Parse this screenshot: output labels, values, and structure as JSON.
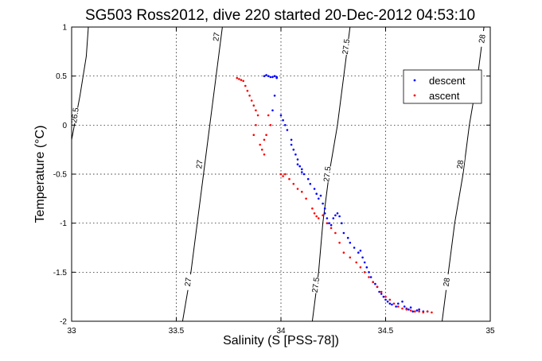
{
  "chart_data": {
    "type": "scatter",
    "title": "SG503 Ross2012, dive 220 started 20-Dec-2012 04:53:10",
    "xlabel": "Salinity (S [PSS-78])",
    "ylabel": "Temperature (°C)",
    "xlim": [
      33,
      35
    ],
    "ylim": [
      -2,
      1
    ],
    "grid": true,
    "legend_position": "top-right",
    "x_ticks": [
      "33",
      "33.5",
      "34",
      "34.5",
      "35"
    ],
    "y_ticks": [
      "1",
      "0.5",
      "0",
      "-0.5",
      "-1",
      "-1.5",
      "-2"
    ],
    "colors": {
      "descent": "#0000ff",
      "ascent": "#ff0000"
    },
    "contours": [
      {
        "label": "26.5",
        "points": [
          [
            33.0,
            -0.15
          ],
          [
            33.04,
            0.3
          ],
          [
            33.07,
            0.7
          ],
          [
            33.08,
            1.0
          ]
        ],
        "labels_at": [
          [
            33.015,
            0.1
          ]
        ]
      },
      {
        "label": "27",
        "points": [
          [
            33.53,
            -2.0
          ],
          [
            33.57,
            -1.5
          ],
          [
            33.6,
            -1.0
          ],
          [
            33.63,
            -0.5
          ],
          [
            33.66,
            0.0
          ],
          [
            33.69,
            0.5
          ],
          [
            33.72,
            1.0
          ]
        ],
        "labels_at": [
          [
            33.555,
            -1.6
          ],
          [
            33.61,
            -0.4
          ],
          [
            33.69,
            0.9
          ]
        ]
      },
      {
        "label": "27.5",
        "points": [
          [
            34.15,
            -2.0
          ],
          [
            34.18,
            -1.5
          ],
          [
            34.2,
            -1.0
          ],
          [
            34.23,
            -0.5
          ],
          [
            34.27,
            0.0
          ],
          [
            34.3,
            0.5
          ],
          [
            34.33,
            1.0
          ]
        ],
        "labels_at": [
          [
            34.165,
            -1.63
          ],
          [
            34.22,
            -0.5
          ],
          [
            34.31,
            0.8
          ]
        ]
      },
      {
        "label": "28",
        "points": [
          [
            34.77,
            -2.0
          ],
          [
            34.8,
            -1.5
          ],
          [
            34.83,
            -1.0
          ],
          [
            34.87,
            -0.5
          ],
          [
            34.9,
            0.0
          ],
          [
            34.94,
            0.5
          ],
          [
            34.97,
            1.0
          ]
        ],
        "labels_at": [
          [
            34.79,
            -1.6
          ],
          [
            34.855,
            -0.4
          ],
          [
            34.96,
            0.88
          ]
        ]
      }
    ],
    "series": [
      {
        "name": "descent",
        "x": [
          33.92,
          33.93,
          33.94,
          33.95,
          33.96,
          33.97,
          33.98,
          33.98,
          33.97,
          33.96,
          34.0,
          34.01,
          34.02,
          34.03,
          34.05,
          34.05,
          34.06,
          34.07,
          34.08,
          34.08,
          34.09,
          34.1,
          34.1,
          34.11,
          34.13,
          34.14,
          34.16,
          34.17,
          34.18,
          34.19,
          34.2,
          34.21,
          34.21,
          34.22,
          34.23,
          34.24,
          34.25,
          34.26,
          34.27,
          34.28,
          34.29,
          34.3,
          34.32,
          34.33,
          34.35,
          34.37,
          34.38,
          34.39,
          34.4,
          34.41,
          34.42,
          34.43,
          34.44,
          34.45,
          34.46,
          34.47,
          34.48,
          34.49,
          34.5,
          34.51,
          34.52,
          34.53,
          34.55,
          34.56,
          34.58,
          34.59,
          34.6,
          34.61,
          34.62,
          34.63,
          34.65,
          34.66,
          34.68,
          34.7
        ],
        "y": [
          0.5,
          0.51,
          0.5,
          0.49,
          0.49,
          0.5,
          0.49,
          0.48,
          0.3,
          0.15,
          0.1,
          0.05,
          0.0,
          -0.05,
          -0.15,
          -0.2,
          -0.25,
          -0.3,
          -0.35,
          -0.4,
          -0.42,
          -0.45,
          -0.48,
          -0.5,
          -0.55,
          -0.6,
          -0.65,
          -0.7,
          -0.75,
          -0.72,
          -0.8,
          -0.85,
          -0.9,
          -0.95,
          -1.0,
          -1.02,
          -0.95,
          -0.92,
          -0.9,
          -0.93,
          -1.0,
          -1.1,
          -1.15,
          -1.2,
          -1.25,
          -1.3,
          -1.28,
          -1.35,
          -1.4,
          -1.45,
          -1.5,
          -1.55,
          -1.6,
          -1.62,
          -1.65,
          -1.7,
          -1.72,
          -1.75,
          -1.78,
          -1.8,
          -1.82,
          -1.83,
          -1.85,
          -1.82,
          -1.8,
          -1.85,
          -1.87,
          -1.88,
          -1.86,
          -1.9,
          -1.89,
          -1.88,
          -1.9,
          -1.9
        ]
      },
      {
        "name": "ascent",
        "x": [
          33.79,
          33.8,
          33.81,
          33.82,
          33.83,
          33.84,
          33.85,
          33.86,
          33.87,
          33.88,
          33.89,
          33.88,
          33.87,
          33.9,
          33.91,
          33.92,
          33.92,
          33.93,
          33.94,
          33.95,
          34.0,
          34.01,
          34.02,
          34.04,
          34.06,
          34.08,
          34.1,
          34.12,
          34.15,
          34.16,
          34.17,
          34.18,
          34.2,
          34.22,
          34.24,
          34.26,
          34.28,
          34.3,
          34.33,
          34.36,
          34.38,
          34.4,
          34.42,
          34.44,
          34.46,
          34.48,
          34.5,
          34.52,
          34.54,
          34.56,
          34.58,
          34.6,
          34.62,
          34.64,
          34.66,
          34.68,
          34.7,
          34.72
        ],
        "y": [
          0.48,
          0.47,
          0.46,
          0.45,
          0.4,
          0.35,
          0.3,
          0.25,
          0.2,
          0.15,
          0.1,
          0.0,
          -0.1,
          -0.2,
          -0.25,
          -0.3,
          -0.15,
          -0.1,
          0.1,
          0.0,
          -0.5,
          -0.52,
          -0.5,
          -0.55,
          -0.6,
          -0.65,
          -0.68,
          -0.75,
          -0.85,
          -0.9,
          -0.93,
          -0.95,
          -0.92,
          -1.0,
          -1.05,
          -1.1,
          -1.2,
          -1.3,
          -1.35,
          -1.4,
          -1.45,
          -1.5,
          -1.55,
          -1.6,
          -1.65,
          -1.7,
          -1.75,
          -1.78,
          -1.82,
          -1.85,
          -1.87,
          -1.88,
          -1.89,
          -1.9,
          -1.9,
          -1.91,
          -1.9,
          -1.91
        ]
      }
    ]
  }
}
